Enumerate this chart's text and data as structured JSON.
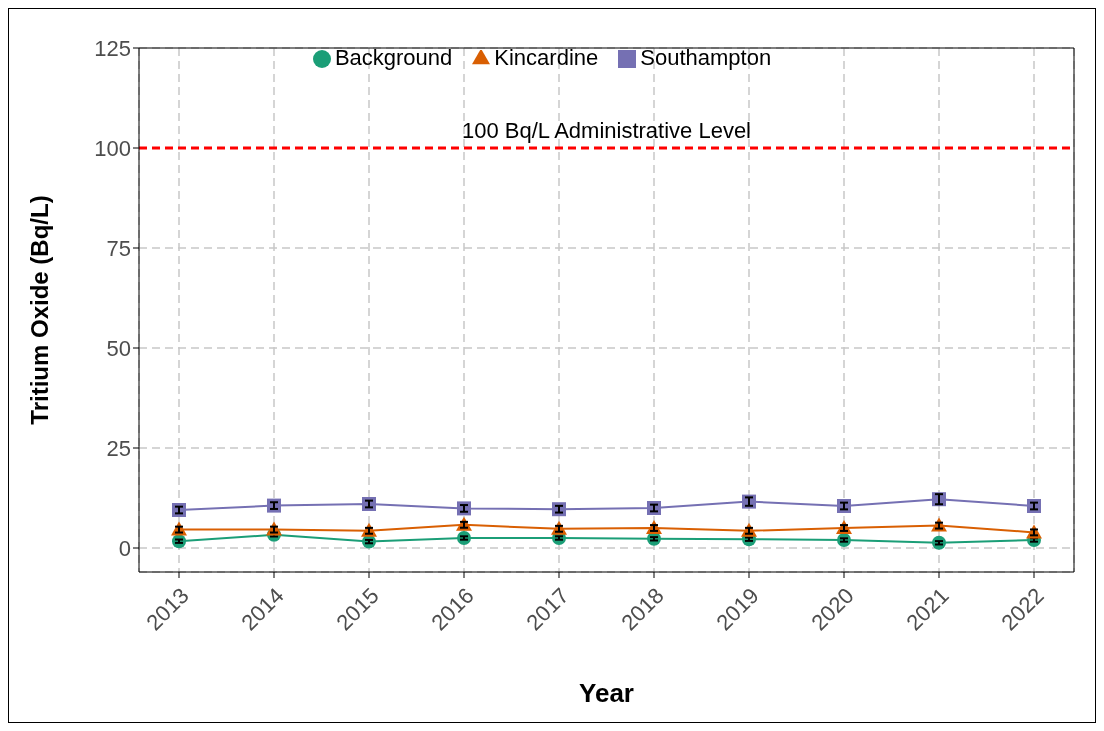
{
  "chart_data": {
    "type": "line",
    "xlabel": "Year",
    "ylabel": "Tritium Oxide (Bq/L)",
    "categories": [
      "2013",
      "2014",
      "2015",
      "2016",
      "2017",
      "2018",
      "2019",
      "2020",
      "2021",
      "2022"
    ],
    "series": [
      {
        "name": "Background",
        "color": "#1b9e77",
        "marker": "circle",
        "values": [
          1.7,
          3.3,
          1.6,
          2.5,
          2.5,
          2.3,
          2.2,
          2.0,
          1.3,
          2.0
        ],
        "errors": [
          0.4,
          0.4,
          0.4,
          0.4,
          0.4,
          0.4,
          0.4,
          0.4,
          0.4,
          0.4
        ]
      },
      {
        "name": "Kincardine",
        "color": "#d95f02",
        "marker": "triangle",
        "values": [
          4.6,
          4.6,
          4.3,
          5.8,
          4.8,
          5.0,
          4.3,
          5.0,
          5.6,
          3.9
        ],
        "errors": [
          0.7,
          0.7,
          0.7,
          0.7,
          0.7,
          0.7,
          0.7,
          0.7,
          0.7,
          0.7
        ]
      },
      {
        "name": "Southampton",
        "color": "#7570b3",
        "marker": "square",
        "values": [
          9.5,
          10.6,
          11.0,
          9.9,
          9.7,
          10.0,
          11.6,
          10.5,
          12.2,
          10.5
        ],
        "errors": [
          0.8,
          0.8,
          0.8,
          0.8,
          0.8,
          0.8,
          1.0,
          0.8,
          1.2,
          0.8
        ]
      }
    ],
    "ylim": [
      -6,
      125
    ],
    "yticks": [
      0,
      25,
      50,
      75,
      100,
      125
    ],
    "grid": true,
    "legend": "top",
    "line_style": "solid",
    "ref_lines": [
      {
        "axis": "y",
        "value": 100,
        "label": "100 Bq/L Administrative Level",
        "color": "#ff0000",
        "line_style": "dashed"
      }
    ]
  }
}
